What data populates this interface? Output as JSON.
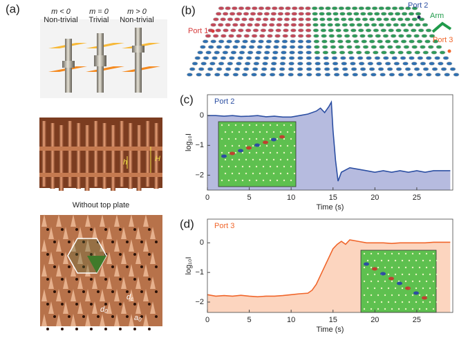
{
  "panel_a": {
    "label": "(a)",
    "cases": [
      {
        "condition": "m < 0",
        "kind": "Non-trivial"
      },
      {
        "condition": "m = 0",
        "kind": "Trivial"
      },
      {
        "condition": "m > 0",
        "kind": "Non-trivial"
      }
    ],
    "photo_labels": [
      "h",
      "H"
    ],
    "caption": "Without top plate",
    "bottom_labels": [
      {
        "base": "d",
        "sub": "c"
      },
      {
        "base": "d",
        "sub": "0"
      },
      {
        "base": "a",
        "sub": "0"
      }
    ]
  },
  "panel_b": {
    "label": "(b)",
    "ports": [
      "Port 1",
      "Port 2",
      "Port 3"
    ],
    "arm": "Arm"
  },
  "chart_data": [
    {
      "type": "line",
      "panel_label": "(c)",
      "xlabel": "Time (s)",
      "ylabel": "log₁₀I",
      "x": [
        0,
        1,
        2,
        3,
        4,
        5,
        6,
        7,
        8,
        9,
        10,
        11,
        12,
        13,
        13.5,
        14,
        14.5,
        14.8,
        15,
        15.3,
        15.6,
        16,
        17,
        18,
        19,
        20,
        21,
        22,
        23,
        24,
        25,
        26,
        27,
        28,
        29
      ],
      "series": [
        {
          "name": "Port 2",
          "color": "#2b4ea2",
          "fill": "#b6bbdf",
          "values": [
            0,
            0,
            -0.02,
            0,
            -0.03,
            -0.02,
            0,
            -0.04,
            -0.02,
            -0.05,
            -0.05,
            0,
            0.05,
            0.15,
            0.25,
            0.1,
            0.3,
            0.45,
            -0.5,
            -1.5,
            -2.2,
            -1.9,
            -1.75,
            -1.8,
            -1.85,
            -1.9,
            -1.85,
            -1.9,
            -1.85,
            -1.9,
            -1.85,
            -1.9,
            -1.85,
            -1.85,
            -1.85
          ]
        }
      ],
      "xlim": [
        0,
        29.3
      ],
      "xticks": [
        0,
        5,
        10,
        15,
        20,
        25
      ],
      "ylim": [
        -2.5,
        0.7
      ],
      "yticks": [
        0,
        {
          "value": -1,
          "label": "−1"
        },
        {
          "value": -2,
          "label": "−2"
        }
      ]
    },
    {
      "type": "line",
      "panel_label": "(d)",
      "xlabel": "Time (s)",
      "ylabel": "log₁₀I",
      "x": [
        0,
        1,
        2,
        3,
        4,
        5,
        6,
        7,
        8,
        9,
        10,
        11,
        12,
        12.5,
        13,
        13.5,
        14,
        14.5,
        15,
        15.5,
        16,
        16.5,
        17,
        18,
        19,
        20,
        21,
        22,
        23,
        24,
        25,
        26,
        27,
        28,
        29
      ],
      "series": [
        {
          "name": "Port 3",
          "color": "#f0652a",
          "fill": "#fcd5bf",
          "values": [
            -1.75,
            -1.8,
            -1.78,
            -1.8,
            -1.77,
            -1.8,
            -1.82,
            -1.8,
            -1.8,
            -1.78,
            -1.75,
            -1.72,
            -1.7,
            -1.6,
            -1.4,
            -1.1,
            -0.8,
            -0.5,
            -0.2,
            -0.05,
            0.05,
            -0.05,
            0.1,
            0.05,
            0,
            0,
            0,
            -0.02,
            0,
            0,
            0,
            0,
            0.02,
            0.02,
            0.02
          ]
        }
      ],
      "xlim": [
        0,
        29.3
      ],
      "xticks": [
        0,
        5,
        10,
        15,
        20,
        25
      ],
      "ylim": [
        -2.35,
        0.8
      ],
      "yticks": [
        0,
        {
          "value": -1,
          "label": "−1"
        },
        {
          "value": -2,
          "label": "−2"
        }
      ]
    }
  ]
}
